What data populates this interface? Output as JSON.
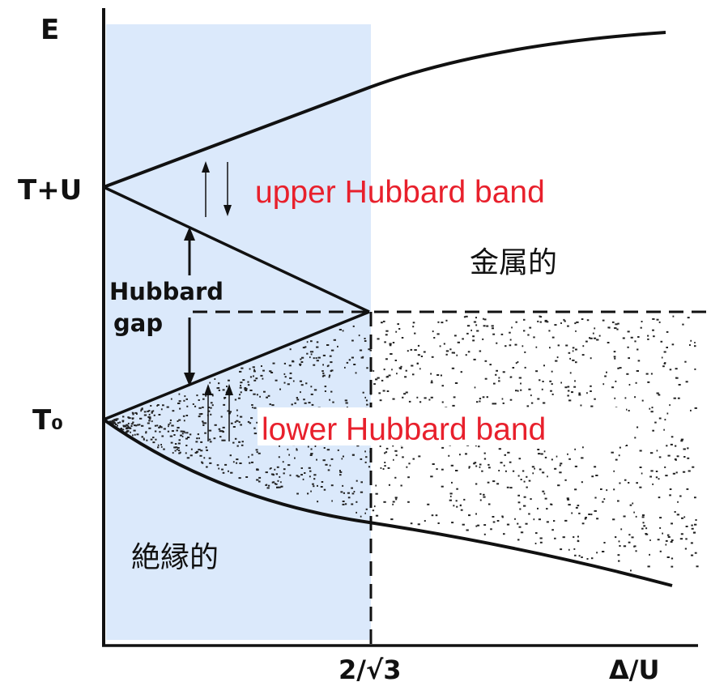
{
  "axes": {
    "y_label": "E",
    "x_label": "Δ/U",
    "x_tick_critical": "2/√3",
    "y_tick_upper": "T+U",
    "y_tick_lower": "T₀"
  },
  "labels": {
    "gap_line1": "Hubbard",
    "gap_line2": "gap",
    "upper_band": "upper Hubbard band",
    "lower_band": "lower Hubbard band",
    "metallic": "金属的",
    "insulating": "絶縁的"
  },
  "colors": {
    "insulating_region": "#dbe9fb",
    "band_label": "#e8202c",
    "lines": "#111111"
  }
}
